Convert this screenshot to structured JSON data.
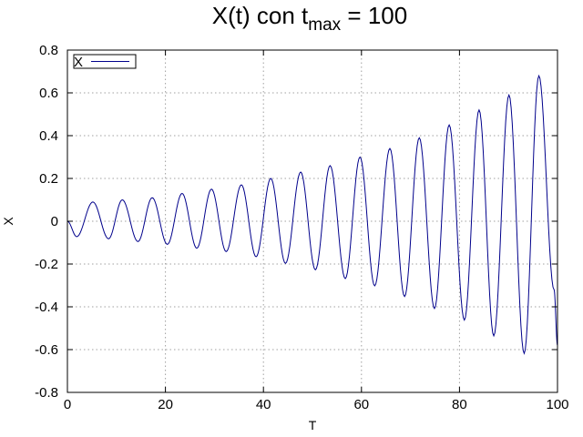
{
  "chart_data": {
    "type": "line",
    "title": {
      "main": "X(t) con t",
      "subscript": "max",
      "suffix": " = 100"
    },
    "xlabel": "T",
    "ylabel": "X",
    "xlim": [
      0,
      100
    ],
    "ylim": [
      -0.8,
      0.8
    ],
    "xticks": [
      0,
      20,
      40,
      60,
      80,
      100
    ],
    "yticks": [
      -0.8,
      -0.6,
      -0.4,
      -0.2,
      0,
      0.2,
      0.4,
      0.6,
      0.8
    ],
    "xtick_labels": [
      "0",
      "20",
      "40",
      "60",
      "80",
      "100"
    ],
    "ytick_labels": [
      "-0.8",
      "-0.6",
      "-0.4",
      "-0.2",
      "0",
      "0.2",
      "0.4",
      "0.6",
      "0.8"
    ],
    "grid": true,
    "legend_position": "top-left",
    "series": [
      {
        "name": "X",
        "color": "#00008b",
        "x": [
          0,
          1.9,
          5.2,
          8.4,
          11.2,
          14.4,
          17.3,
          20.4,
          23.4,
          26.4,
          29.4,
          32.4,
          35.5,
          38.5,
          41.5,
          44.5,
          47.6,
          50.6,
          53.6,
          56.7,
          59.7,
          62.7,
          65.8,
          68.8,
          71.8,
          74.9,
          77.9,
          81.0,
          84.0,
          87.0,
          90.1,
          93.2,
          96.2,
          99.3,
          100
        ],
        "y": [
          0,
          -0.072,
          0.09,
          -0.082,
          0.1,
          -0.095,
          0.11,
          -0.108,
          0.13,
          -0.126,
          0.15,
          -0.142,
          0.17,
          -0.166,
          0.2,
          -0.197,
          0.23,
          -0.227,
          0.26,
          -0.268,
          0.3,
          -0.302,
          0.34,
          -0.352,
          0.39,
          -0.408,
          0.45,
          -0.462,
          0.52,
          -0.536,
          0.59,
          -0.618,
          0.68,
          -0.32,
          -0.58
        ]
      }
    ]
  }
}
